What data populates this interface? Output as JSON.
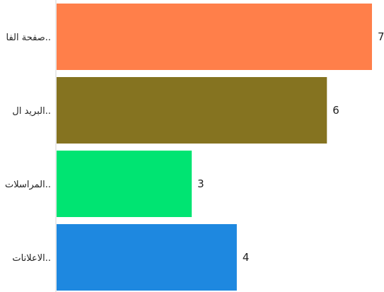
{
  "chart_data": {
    "type": "bar",
    "orientation": "horizontal",
    "categories": [
      "صفحة الفا..",
      "البريد ال..",
      "المراسلات..",
      "الاعلانات.."
    ],
    "values": [
      7,
      6,
      3,
      4
    ],
    "colors": [
      "#FF7F4A",
      "#857320",
      "#00E472",
      "#1E88E0"
    ],
    "title": "",
    "xlabel": "",
    "ylabel": "",
    "xlim": [
      0,
      7
    ],
    "grid": false,
    "legend": "none"
  }
}
